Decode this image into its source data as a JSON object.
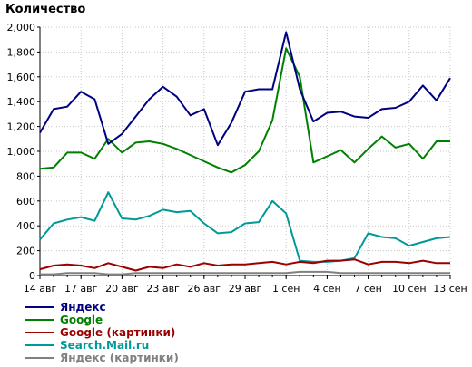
{
  "chart_data": {
    "type": "line",
    "title": "Количество",
    "xlabel": "",
    "ylabel": "",
    "ylim": [
      0,
      2000
    ],
    "yticks": [
      0,
      200,
      400,
      600,
      800,
      1000,
      1200,
      1400,
      1600,
      1800,
      2000
    ],
    "ytick_labels": [
      "0",
      "200",
      "400",
      "600",
      "800",
      "1,000",
      "1,200",
      "1,400",
      "1,600",
      "1,800",
      "2,000"
    ],
    "x_count": 31,
    "xtick_indices": [
      0,
      3,
      6,
      9,
      12,
      15,
      18,
      21,
      24,
      27,
      30
    ],
    "xtick_labels": [
      "14 авг",
      "17 авг",
      "20 авг",
      "23 авг",
      "26 авг",
      "29 авг",
      "1 сен",
      "4 сен",
      "7 сен",
      "10 сен",
      "13 сен"
    ],
    "grid": true,
    "legend_position": "bottom-left",
    "series": [
      {
        "name": "Яндекс",
        "color": "#000080",
        "values": [
          1150,
          1340,
          1360,
          1480,
          1420,
          1060,
          1140,
          1280,
          1420,
          1520,
          1440,
          1290,
          1340,
          1050,
          1230,
          1480,
          1500,
          1500,
          1960,
          1500,
          1240,
          1310,
          1320,
          1280,
          1270,
          1340,
          1350,
          1400,
          1530,
          1410,
          1590
        ]
      },
      {
        "name": "Google",
        "color": "#008000",
        "values": [
          860,
          870,
          990,
          990,
          940,
          1100,
          990,
          1070,
          1080,
          1060,
          1020,
          970,
          920,
          870,
          830,
          890,
          1000,
          1250,
          1830,
          1600,
          910,
          960,
          1010,
          910,
          1020,
          1120,
          1030,
          1060,
          940,
          1080,
          1080
        ]
      },
      {
        "name": "Google (картинки)",
        "color": "#990000",
        "values": [
          50,
          80,
          90,
          80,
          60,
          100,
          70,
          40,
          70,
          60,
          90,
          70,
          100,
          80,
          90,
          90,
          100,
          110,
          90,
          110,
          100,
          120,
          120,
          130,
          90,
          110,
          110,
          100,
          120,
          100,
          100
        ]
      },
      {
        "name": "Search.Mail.ru",
        "color": "#009999",
        "values": [
          290,
          420,
          450,
          470,
          440,
          670,
          460,
          450,
          480,
          530,
          510,
          520,
          420,
          340,
          350,
          420,
          430,
          600,
          500,
          120,
          110,
          110,
          120,
          140,
          340,
          310,
          300,
          240,
          270,
          300,
          310
        ]
      },
      {
        "name": "Яндекс (картинки)",
        "color": "#808080",
        "values": [
          10,
          10,
          20,
          20,
          20,
          10,
          10,
          20,
          20,
          20,
          20,
          20,
          20,
          20,
          20,
          20,
          20,
          20,
          20,
          30,
          30,
          30,
          20,
          20,
          20,
          20,
          20,
          20,
          20,
          20,
          20
        ]
      }
    ]
  }
}
